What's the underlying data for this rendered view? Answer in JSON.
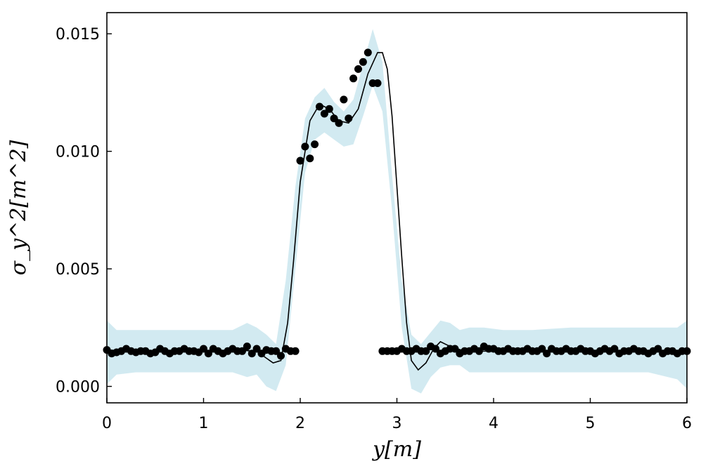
{
  "chart_data": {
    "type": "line",
    "xlabel": "y[m]",
    "ylabel": "σ_y^2[m^2]",
    "xlim": [
      0,
      6
    ],
    "ylim": [
      -0.0007,
      0.0159
    ],
    "xticks": [
      0,
      1,
      2,
      3,
      4,
      5,
      6
    ],
    "xtick_labels": [
      "0",
      "1",
      "2",
      "3",
      "4",
      "5",
      "6"
    ],
    "yticks": [
      0.0,
      0.005,
      0.01,
      0.015
    ],
    "ytick_labels": [
      "0.000",
      "0.005",
      "0.010",
      "0.015"
    ],
    "grid": false,
    "colors": {
      "band": "#add8e6",
      "line": "#000000",
      "points": "#000000"
    },
    "band": {
      "x": [
        0,
        0.1,
        0.3,
        0.5,
        0.7,
        0.9,
        1.1,
        1.3,
        1.45,
        1.55,
        1.65,
        1.75,
        1.85,
        1.95,
        2.05,
        2.15,
        2.25,
        2.35,
        2.45,
        2.55,
        2.65,
        2.75,
        2.85,
        2.95,
        3.05,
        3.15,
        3.25,
        3.35,
        3.45,
        3.55,
        3.65,
        3.75,
        3.9,
        4.1,
        4.4,
        4.8,
        5.2,
        5.6,
        5.9,
        6.0
      ],
      "upper": [
        0.0028,
        0.0024,
        0.0024,
        0.0024,
        0.0024,
        0.0024,
        0.0024,
        0.0024,
        0.0027,
        0.0025,
        0.0022,
        0.0018,
        0.0045,
        0.0085,
        0.0114,
        0.0123,
        0.0127,
        0.0121,
        0.0117,
        0.0122,
        0.0137,
        0.0152,
        0.0138,
        0.009,
        0.0045,
        0.0022,
        0.0018,
        0.0023,
        0.0028,
        0.0027,
        0.0024,
        0.0025,
        0.0025,
        0.0024,
        0.0024,
        0.0025,
        0.0025,
        0.0025,
        0.0025,
        0.0028
      ],
      "lower": [
        0.0001,
        0.0005,
        0.0006,
        0.0006,
        0.0006,
        0.0006,
        0.0006,
        0.0006,
        0.0004,
        0.0005,
        0.0,
        -0.0002,
        0.0009,
        0.005,
        0.0091,
        0.0105,
        0.0108,
        0.0105,
        0.0102,
        0.0103,
        0.0115,
        0.0128,
        0.0117,
        0.0075,
        0.0025,
        -0.0001,
        -0.0003,
        0.0004,
        0.0008,
        0.0009,
        0.0009,
        0.0006,
        0.0006,
        0.0006,
        0.0006,
        0.0006,
        0.0006,
        0.0006,
        0.0003,
        -0.0001
      ]
    },
    "mean_line": {
      "x": [
        0,
        0.2,
        0.4,
        0.6,
        0.8,
        1.0,
        1.2,
        1.4,
        1.55,
        1.65,
        1.72,
        1.8,
        1.87,
        1.93,
        2.0,
        2.1,
        2.2,
        2.3,
        2.4,
        2.5,
        2.6,
        2.7,
        2.8,
        2.85,
        2.9,
        2.95,
        3.0,
        3.05,
        3.1,
        3.15,
        3.22,
        3.3,
        3.38,
        3.45,
        3.55,
        3.7,
        4.0,
        4.5,
        5.0,
        5.5,
        6.0
      ],
      "y": [
        0.00155,
        0.0015,
        0.0015,
        0.0015,
        0.0015,
        0.0015,
        0.0015,
        0.00153,
        0.0015,
        0.0012,
        0.001,
        0.0011,
        0.0027,
        0.0053,
        0.0087,
        0.0113,
        0.012,
        0.0118,
        0.0113,
        0.0112,
        0.0118,
        0.0133,
        0.0142,
        0.0142,
        0.0135,
        0.0115,
        0.0085,
        0.0055,
        0.0027,
        0.0011,
        0.0007,
        0.001,
        0.0016,
        0.0019,
        0.0017,
        0.0015,
        0.0015,
        0.0015,
        0.0015,
        0.0015,
        0.0015
      ]
    },
    "points": {
      "x": [
        0.0,
        0.05,
        0.1,
        0.15,
        0.2,
        0.25,
        0.3,
        0.35,
        0.4,
        0.45,
        0.5,
        0.55,
        0.6,
        0.65,
        0.7,
        0.75,
        0.8,
        0.85,
        0.9,
        0.95,
        1.0,
        1.05,
        1.1,
        1.15,
        1.2,
        1.25,
        1.3,
        1.35,
        1.4,
        1.45,
        1.5,
        1.55,
        1.6,
        1.65,
        1.7,
        1.75,
        1.8,
        1.85,
        1.9,
        1.95,
        2.0,
        2.05,
        2.1,
        2.15,
        2.2,
        2.25,
        2.3,
        2.35,
        2.4,
        2.45,
        2.5,
        2.55,
        2.6,
        2.65,
        2.7,
        2.75,
        2.8,
        2.85,
        2.9,
        2.95,
        3.0,
        3.05,
        3.1,
        3.15,
        3.2,
        3.25,
        3.3,
        3.35,
        3.4,
        3.45,
        3.5,
        3.55,
        3.6,
        3.65,
        3.7,
        3.75,
        3.8,
        3.85,
        3.9,
        3.95,
        4.0,
        4.05,
        4.1,
        4.15,
        4.2,
        4.25,
        4.3,
        4.35,
        4.4,
        4.45,
        4.5,
        4.55,
        4.6,
        4.65,
        4.7,
        4.75,
        4.8,
        4.85,
        4.9,
        4.95,
        5.0,
        5.05,
        5.1,
        5.15,
        5.2,
        5.25,
        5.3,
        5.35,
        5.4,
        5.45,
        5.5,
        5.55,
        5.6,
        5.65,
        5.7,
        5.75,
        5.8,
        5.85,
        5.9,
        5.95,
        6.0
      ],
      "y": [
        0.00155,
        0.0014,
        0.00145,
        0.0015,
        0.0016,
        0.0015,
        0.00145,
        0.0015,
        0.0015,
        0.0014,
        0.00145,
        0.0016,
        0.0015,
        0.0014,
        0.0015,
        0.0015,
        0.0016,
        0.0015,
        0.0015,
        0.00145,
        0.0016,
        0.0014,
        0.0016,
        0.0015,
        0.0014,
        0.0015,
        0.0016,
        0.0015,
        0.0015,
        0.0017,
        0.0014,
        0.0016,
        0.0014,
        0.00155,
        0.0015,
        0.0015,
        0.0013,
        0.0016,
        0.0015,
        0.0015,
        0.0096,
        0.0102,
        0.0097,
        0.0103,
        0.0119,
        0.0116,
        0.0118,
        0.0114,
        0.0112,
        0.0122,
        0.0114,
        0.0131,
        0.0135,
        0.0138,
        0.0142,
        0.0129,
        0.0129,
        0.0015,
        0.0015,
        0.0015,
        0.0015,
        0.0016,
        0.0015,
        0.0015,
        0.0016,
        0.0015,
        0.0015,
        0.0017,
        0.0016,
        0.0014,
        0.0015,
        0.0016,
        0.0016,
        0.0014,
        0.0015,
        0.0015,
        0.0016,
        0.0015,
        0.0017,
        0.0016,
        0.0016,
        0.0015,
        0.0015,
        0.0016,
        0.0015,
        0.0015,
        0.0015,
        0.0016,
        0.0015,
        0.0015,
        0.0016,
        0.0014,
        0.0016,
        0.0015,
        0.0015,
        0.0016,
        0.0015,
        0.0015,
        0.0016,
        0.0015,
        0.0015,
        0.0014,
        0.0015,
        0.0016,
        0.0015,
        0.0016,
        0.0014,
        0.0015,
        0.0015,
        0.0016,
        0.0015,
        0.0015,
        0.0014,
        0.0015,
        0.0016,
        0.0014,
        0.0015,
        0.0015,
        0.0014,
        0.0015,
        0.0015
      ]
    }
  }
}
